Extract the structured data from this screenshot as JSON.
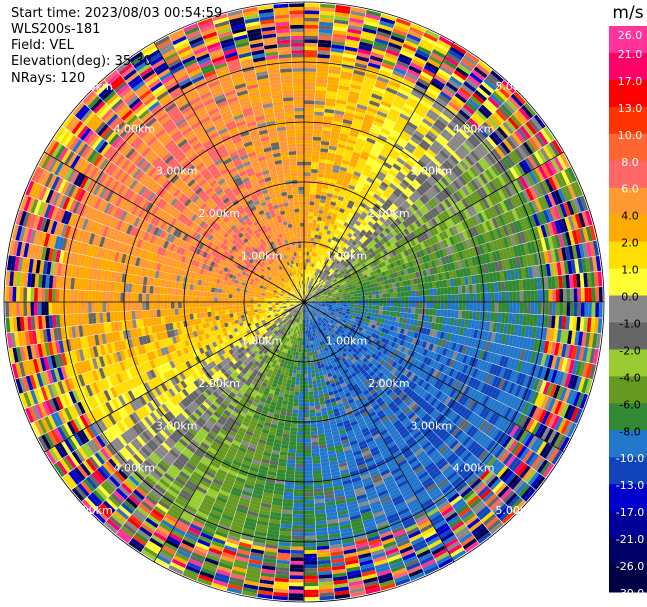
{
  "header": {
    "start_time": "Start time: 2023/08/03 00:54:59",
    "instrument": "WLS200s-181",
    "field": "Field: VEL",
    "elevation": "Elevation(deg): 35.30",
    "nrays": "NRays: 120"
  },
  "chart_data": {
    "type": "heatmap",
    "projection": "polar-ppi",
    "field": "VEL",
    "units": "m/s",
    "nrays": 120,
    "range_rings_km": [
      1.0,
      2.0,
      3.0,
      4.0,
      5.0
    ],
    "ring_labels": [
      "1.00km",
      "2.00km",
      "3.00km",
      "4.00km",
      "5.00km"
    ],
    "max_range_km": 5.0,
    "grid": true,
    "colorbar": {
      "label": "m/s",
      "placement": "right",
      "ticks": [
        "26.0",
        "21.0",
        "17.0",
        "13.0",
        "10.0",
        "8.0",
        "6.0",
        "4.0",
        "2.0",
        "1.0",
        "0.0",
        "-1.0",
        "-2.0",
        "-4.0",
        "-6.0",
        "-8.0",
        "-10.0",
        "-13.0",
        "-17.0",
        "-21.0",
        "-26.0",
        "-30.0"
      ],
      "colors": [
        "#ff3399",
        "#ff0066",
        "#ff0000",
        "#ff3300",
        "#ff6633",
        "#ff6666",
        "#ff9933",
        "#ffaa00",
        "#ffdd00",
        "#ffff33",
        "#888888",
        "#666666",
        "#99cc33",
        "#669922",
        "#338833",
        "#2277cc",
        "#1144bb",
        "#0000cc",
        "#000099",
        "#000066",
        "#000044"
      ]
    }
  }
}
